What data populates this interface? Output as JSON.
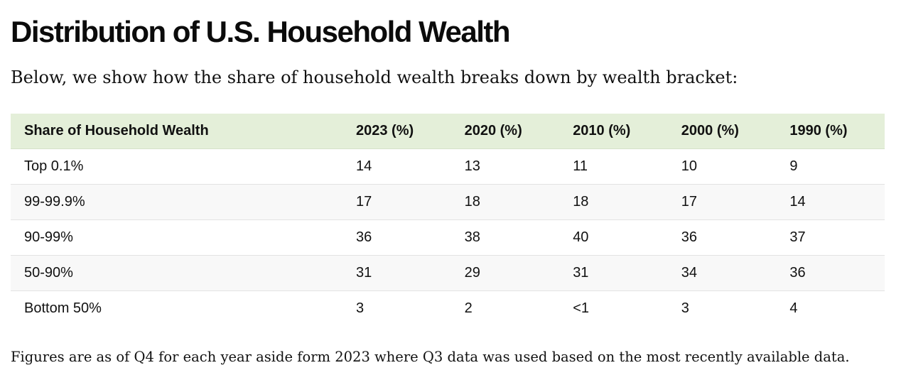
{
  "title": "Distribution of U.S. Household Wealth",
  "intro": "Below, we show how the share of household wealth breaks down by wealth bracket:",
  "table": {
    "headers": [
      "Share of Household Wealth",
      "2023 (%)",
      "2020 (%)",
      "2010 (%)",
      "2000 (%)",
      "1990 (%)"
    ],
    "rows": [
      [
        "Top 0.1%",
        "14",
        "13",
        "11",
        "10",
        "9"
      ],
      [
        "99-99.9%",
        "17",
        "18",
        "18",
        "17",
        "14"
      ],
      [
        "90-99%",
        "36",
        "38",
        "40",
        "36",
        "37"
      ],
      [
        "50-90%",
        "31",
        "29",
        "31",
        "34",
        "36"
      ],
      [
        "Bottom 50%",
        "3",
        "2",
        "<1",
        "3",
        "4"
      ]
    ]
  },
  "footnote": "Figures are as of Q4 for each year aside form 2023 where Q3 data was used based on the most recently available data."
}
